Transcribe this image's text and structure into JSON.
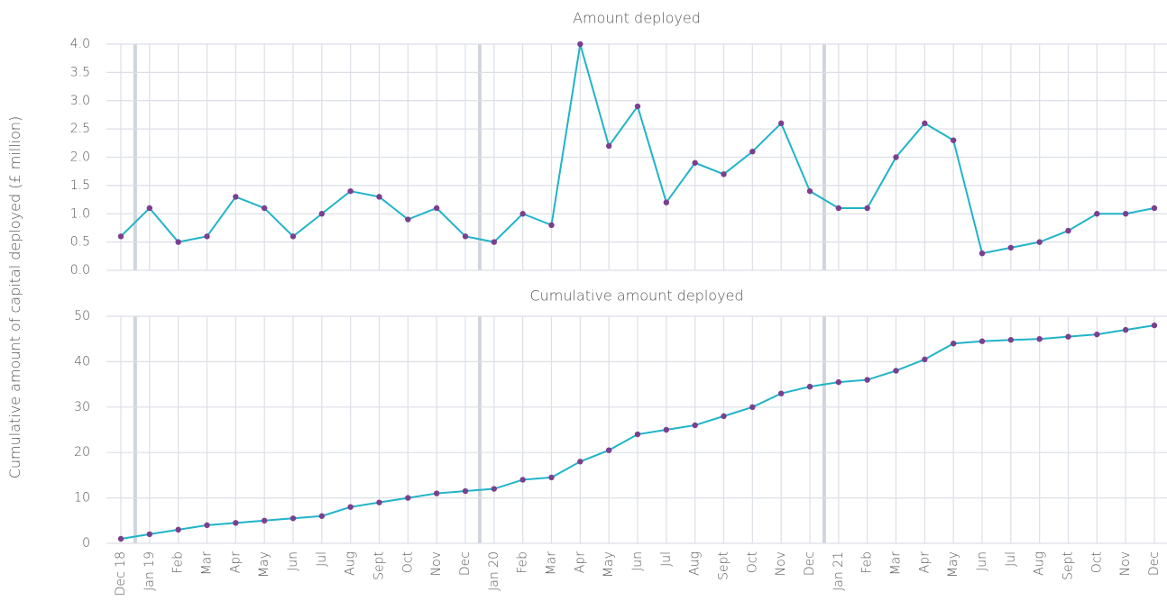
{
  "y_label": "Cumulative amount of capital deployed (£ million)",
  "chart_data": [
    {
      "type": "line",
      "title": "Amount deployed",
      "series": [
        {
          "name": "Amount deployed",
          "color": "#20b4c8",
          "marker_color": "#7b3f8f",
          "values": [
            0.6,
            1.1,
            0.5,
            0.6,
            1.3,
            1.1,
            0.6,
            1.0,
            1.4,
            1.3,
            0.9,
            1.1,
            0.6,
            0.5,
            1.0,
            0.8,
            4.0,
            2.2,
            2.9,
            1.2,
            1.9,
            1.7,
            2.1,
            2.6,
            1.4,
            1.1,
            1.1,
            2.0,
            2.6,
            2.3,
            0.3,
            0.4,
            0.5,
            0.7,
            1.0,
            1.0,
            1.1
          ]
        }
      ],
      "ylim": [
        0,
        4
      ],
      "yticks": [
        {
          "value": 0,
          "label": "0.0"
        },
        0.5,
        {
          "value": 1,
          "label": "1.0"
        },
        1.5,
        {
          "value": 2,
          "label": "2.0"
        },
        2.5,
        {
          "value": 3,
          "label": "3.0"
        },
        3.5,
        {
          "value": 4,
          "label": "4.0"
        }
      ],
      "grid": true
    },
    {
      "type": "line",
      "title": "Cumulative amount deployed",
      "categories": [
        "Dec 18",
        "Jan 19",
        "Feb",
        "Mar",
        "Apr",
        "May",
        "Jun",
        "Jul",
        "Aug",
        "Sept",
        "Oct",
        "Nov",
        "Dec",
        "Jan 20",
        "Feb",
        "Mar",
        "Apr",
        "May",
        "Jun",
        "Jul",
        "Aug",
        "Sept",
        "Oct",
        "Nov",
        "Dec",
        "Jan 21",
        "Feb",
        "Mar",
        "Apr",
        "May",
        "Jun",
        "Jul",
        "Aug",
        "Sept",
        "Oct",
        "Nov",
        "Dec"
      ],
      "series": [
        {
          "name": "Cumulative amount deployed",
          "color": "#20b4c8",
          "marker_color": "#7b3f8f",
          "values": [
            1,
            2,
            3,
            4,
            4.5,
            5,
            5.5,
            6,
            8,
            9,
            10,
            11,
            11.5,
            12,
            14,
            14.5,
            18,
            20.5,
            24,
            25,
            26,
            28,
            30,
            33,
            34.5,
            35.5,
            36,
            38,
            40.5,
            44,
            44.5,
            44.8,
            45,
            45.5,
            46,
            47,
            48
          ]
        }
      ],
      "ylim": [
        0,
        50
      ],
      "yticks": [
        0,
        10,
        20,
        30,
        40,
        50
      ],
      "grid": true
    }
  ]
}
